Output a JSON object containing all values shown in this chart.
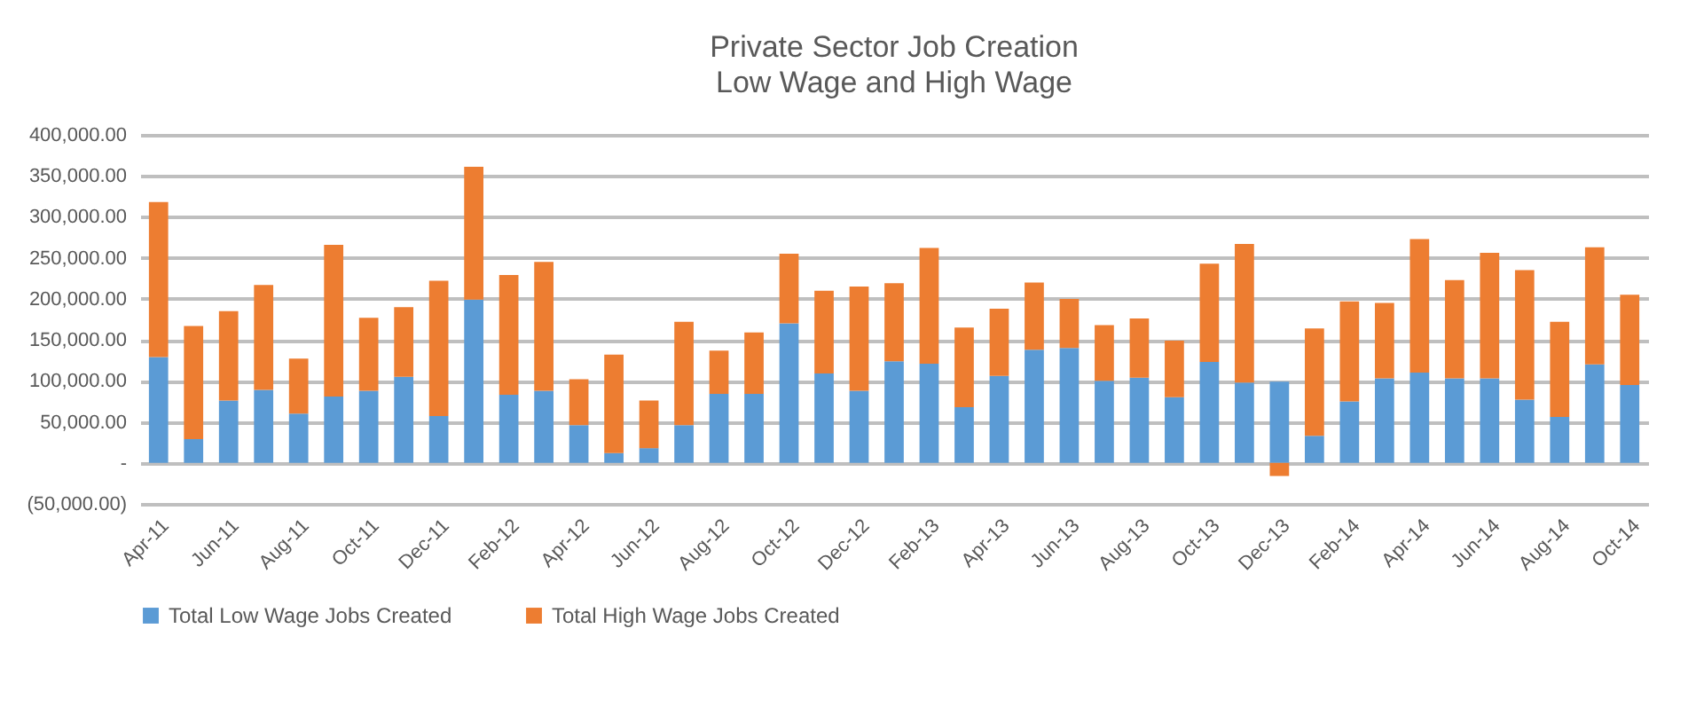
{
  "chart_data": {
    "type": "bar",
    "title": "Private Sector Job Creation",
    "subtitle": "Low Wage and High Wage",
    "stacked": true,
    "categories": [
      "Apr-11",
      null,
      "Jun-11",
      null,
      "Aug-11",
      null,
      "Oct-11",
      null,
      "Dec-11",
      null,
      "Feb-12",
      null,
      "Apr-12",
      null,
      "Jun-12",
      null,
      "Aug-12",
      null,
      "Oct-12",
      null,
      "Dec-12",
      null,
      "Feb-13",
      null,
      "Apr-13",
      null,
      "Jun-13",
      null,
      "Aug-13",
      null,
      "Oct-13",
      null,
      "Dec-13",
      null,
      "Feb-14",
      null,
      "Apr-14",
      null,
      "Jun-14",
      null,
      "Aug-14",
      null,
      "Oct-14"
    ],
    "series": [
      {
        "name": "Total Low Wage Jobs Created",
        "color": "#5b9bd5",
        "values": [
          129000,
          29000,
          76000,
          89000,
          60000,
          81000,
          88000,
          105000,
          57000,
          199000,
          83000,
          88000,
          46000,
          12000,
          18000,
          46000,
          84000,
          84000,
          170000,
          109000,
          88000,
          124000,
          121000,
          68000,
          106000,
          138000,
          140000,
          100000,
          104000,
          80000,
          123000,
          98000,
          99000,
          33000,
          75000,
          103000,
          110000,
          103000,
          103000,
          77000,
          56000,
          120000,
          95000
        ]
      },
      {
        "name": "Total High Wage Jobs Created",
        "color": "#ed7d31",
        "values": [
          189000,
          138000,
          109000,
          128000,
          67000,
          185000,
          89000,
          85000,
          165000,
          162000,
          146000,
          157000,
          56000,
          120000,
          58000,
          126000,
          53000,
          75000,
          85000,
          101000,
          127000,
          95000,
          141000,
          97000,
          82000,
          82000,
          60000,
          68000,
          72000,
          69000,
          120000,
          169000,
          -16000,
          131000,
          122000,
          92000,
          163000,
          120000,
          153000,
          158000,
          116000,
          143000,
          110000
        ]
      }
    ],
    "ylim": [
      -50000,
      400000
    ],
    "yticks": [
      {
        "value": -50000,
        "label": "(50,000.00)"
      },
      {
        "value": 0,
        "label": "-"
      },
      {
        "value": 50000,
        "label": "50,000.00"
      },
      {
        "value": 100000,
        "label": "100,000.00"
      },
      {
        "value": 150000,
        "label": "150,000.00"
      },
      {
        "value": 200000,
        "label": "200,000.00"
      },
      {
        "value": 250000,
        "label": "250,000.00"
      },
      {
        "value": 300000,
        "label": "300,000.00"
      },
      {
        "value": 350000,
        "label": "350,000.00"
      },
      {
        "value": 400000,
        "label": "400,000.00"
      }
    ],
    "grid": true,
    "legend": "bottom"
  }
}
